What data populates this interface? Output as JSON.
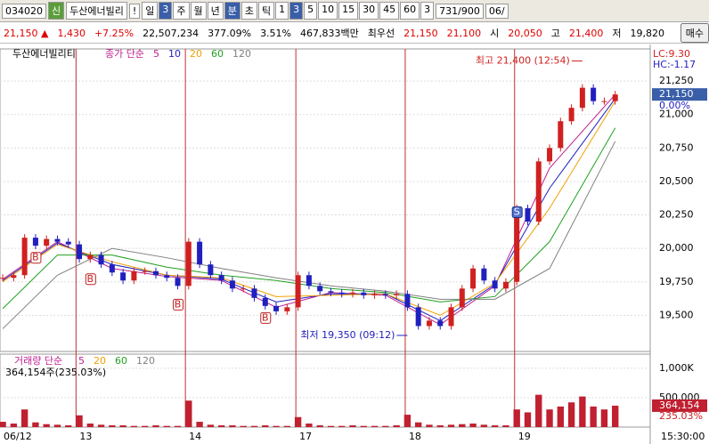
{
  "toolbar": {
    "code": "034020",
    "badge": "신",
    "name": "두산에너빌리",
    "alert": "!",
    "buttons": [
      "일",
      "3",
      "주",
      "월",
      "년",
      "분",
      "초",
      "틱",
      "1",
      "3",
      "5",
      "10",
      "15",
      "30",
      "45",
      "60"
    ],
    "period": "3",
    "count": "731/900",
    "date": "06/"
  },
  "infobar": {
    "items": [
      "21,150 ▲",
      "1,430",
      "+7.25%",
      "22,507,234",
      "377.09%",
      "3.51%",
      "467,833백만",
      "최우선",
      "21,150",
      "21,100",
      "시",
      "20,050",
      "고",
      "21,400",
      "저",
      "19,820"
    ],
    "button": "매수"
  },
  "chart_data": [
    {
      "type": "candle-line",
      "title": "두산에너빌리티",
      "legend_title": "종가 단순",
      "color": "#2020a0",
      "x": [
        0,
        1,
        2,
        3,
        4,
        5,
        6,
        7,
        8,
        9,
        10,
        11,
        12,
        13,
        14,
        15,
        16,
        17,
        18,
        19,
        20,
        21,
        22,
        23,
        24,
        25,
        26,
        27,
        28,
        29,
        30,
        31,
        32,
        33,
        34,
        35,
        36,
        37,
        38,
        39,
        40,
        41,
        42,
        43,
        44,
        45,
        46,
        47,
        48,
        49,
        50,
        51,
        52,
        53,
        54,
        55,
        56
      ],
      "values": [
        19780,
        19800,
        20080,
        20020,
        20070,
        20050,
        20030,
        19920,
        19950,
        19880,
        19820,
        19760,
        19830,
        19830,
        19800,
        19780,
        19720,
        20050,
        19880,
        19800,
        19760,
        19700,
        19700,
        19630,
        19570,
        19530,
        19560,
        19800,
        19720,
        19680,
        19670,
        19660,
        19670,
        19650,
        19660,
        19650,
        19660,
        19560,
        19420,
        19460,
        19420,
        19560,
        19700,
        19850,
        19760,
        19700,
        19750,
        20300,
        20200,
        20650,
        20750,
        20950,
        21050,
        21200,
        21100,
        21100,
        21150
      ],
      "series": [
        {
          "name": "5",
          "color": "#c02090",
          "x": [
            0,
            5,
            10,
            15,
            20,
            25,
            30,
            35,
            40,
            45,
            50,
            56
          ],
          "values": [
            19770,
            20050,
            19850,
            19790,
            19760,
            19560,
            19670,
            19650,
            19430,
            19720,
            20600,
            21150
          ]
        },
        {
          "name": "10",
          "color": "#2020c0",
          "x": [
            0,
            5,
            10,
            15,
            20,
            25,
            30,
            35,
            40,
            45,
            50,
            56
          ],
          "values": [
            19760,
            20040,
            19880,
            19800,
            19770,
            19600,
            19660,
            19660,
            19460,
            19730,
            20450,
            21120
          ]
        },
        {
          "name": "20",
          "color": "#f0a000",
          "x": [
            0,
            5,
            10,
            15,
            20,
            25,
            30,
            35,
            40,
            45,
            50,
            56
          ],
          "values": [
            19750,
            20030,
            19900,
            19800,
            19780,
            19640,
            19650,
            19660,
            19500,
            19740,
            20300,
            21100
          ]
        },
        {
          "name": "60",
          "color": "#20a020",
          "x": [
            0,
            5,
            10,
            15,
            20,
            25,
            30,
            35,
            40,
            45,
            50,
            56
          ],
          "values": [
            19550,
            19950,
            19950,
            19860,
            19800,
            19760,
            19700,
            19670,
            19600,
            19640,
            20050,
            20900
          ]
        },
        {
          "name": "120",
          "color": "#808080",
          "x": [
            0,
            5,
            10,
            15,
            20,
            25,
            30,
            35,
            40,
            45,
            50,
            56
          ],
          "values": [
            19400,
            19800,
            20000,
            19930,
            19850,
            19780,
            19720,
            19680,
            19620,
            19620,
            19850,
            20800
          ]
        }
      ],
      "signals": [
        {
          "label": "B",
          "x": 3,
          "value": 19930
        },
        {
          "label": "B",
          "x": 8,
          "value": 19770
        },
        {
          "label": "B",
          "x": 16,
          "value": 19580
        },
        {
          "label": "B",
          "x": 24,
          "value": 19480
        },
        {
          "label": "S",
          "x": 47,
          "value": 20270
        }
      ],
      "annotations": [
        {
          "text": "최고 21,400 (12:54)",
          "x": 53,
          "value": 21400
        },
        {
          "text": "최저 19,350 (09:12)",
          "x": 37,
          "value": 19350
        }
      ],
      "lc": "LC:9.30",
      "hc": "HC:-1.17",
      "last_label": "21,150",
      "last_value": 21150,
      "rate_label": "0.00%",
      "ylim": [
        19230,
        21490
      ],
      "yticks": [
        {
          "value": 19500,
          "label": "19,500"
        },
        {
          "value": 19750,
          "label": "19,750"
        },
        {
          "value": 20000,
          "label": "20,000"
        },
        {
          "value": 20250,
          "label": "20,250"
        },
        {
          "value": 20500,
          "label": "20,500"
        },
        {
          "value": 20750,
          "label": "20,750"
        },
        {
          "value": 21000,
          "label": "21,000"
        },
        {
          "value": 21250,
          "label": "21,250"
        }
      ],
      "xlim": [
        -0.25,
        59.2
      ],
      "day_lines": [
        {
          "label": "06/12",
          "x": -0.25
        },
        {
          "label": "13",
          "x": 6.7
        },
        {
          "label": "14",
          "x": 16.7
        },
        {
          "label": "17",
          "x": 26.8
        },
        {
          "label": "18",
          "x": 36.8
        },
        {
          "label": "19",
          "x": 46.8
        }
      ],
      "time_label": "15:30:00"
    },
    {
      "type": "bar",
      "legend_title": "거래량 단순",
      "color": "#c02030",
      "series": [
        {
          "name": "5",
          "color": "#c02090"
        },
        {
          "name": "20",
          "color": "#f0a000"
        },
        {
          "name": "60",
          "color": "#20a020"
        },
        {
          "name": "120",
          "color": "#808080"
        }
      ],
      "subtitle": "364,154주(235.03%)",
      "values": [
        90000,
        60000,
        300000,
        80000,
        50000,
        40000,
        30000,
        200000,
        60000,
        40000,
        30000,
        30000,
        20000,
        20000,
        30000,
        20000,
        20000,
        450000,
        90000,
        40000,
        30000,
        30000,
        20000,
        20000,
        30000,
        20000,
        20000,
        170000,
        60000,
        30000,
        20000,
        20000,
        30000,
        20000,
        20000,
        20000,
        30000,
        210000,
        80000,
        40000,
        30000,
        40000,
        50000,
        60000,
        40000,
        30000,
        30000,
        300000,
        250000,
        550000,
        300000,
        350000,
        420000,
        520000,
        350000,
        300000,
        364154
      ],
      "last_label": "364,154",
      "last_value": 364154,
      "rate_label": "235.03%",
      "ylim": [
        0,
        1240000
      ],
      "yticks": [
        {
          "value": 500000,
          "label": "500,000"
        },
        {
          "value": 1000000,
          "label": "1,000K"
        }
      ]
    }
  ]
}
